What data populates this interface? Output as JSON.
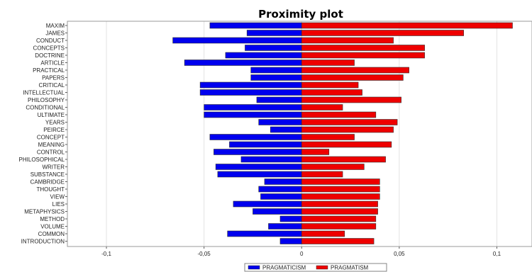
{
  "chart_data": {
    "type": "bar",
    "orientation": "horizontal",
    "title": "Proximity plot",
    "xlabel": "",
    "ylabel": "",
    "xlim": [
      -0.12,
      0.118
    ],
    "xticks": [
      {
        "value": -0.1,
        "label": "-0,1"
      },
      {
        "value": -0.05,
        "label": "-0,05"
      },
      {
        "value": 0,
        "label": "0"
      },
      {
        "value": 0.05,
        "label": "0,05"
      },
      {
        "value": 0.1,
        "label": "0,1"
      }
    ],
    "grid": true,
    "legend_position": "bottom",
    "categories": [
      "MAXIM",
      "JAMES",
      "CONDUCT",
      "CONCEPTS",
      "DOCTRINE",
      "ARTICLE",
      "PRACTICAL",
      "PAPERS",
      "CRITICAL",
      "INTELLECTUAL",
      "PHILOSOPHY",
      "CONDITIONAL",
      "ULTIMATE",
      "YEARS",
      "PEIRCE",
      "CONCEPT",
      "MEANING",
      "CONTROL",
      "PHILOSOPHICAL",
      "WRITER",
      "SUBSTANCE",
      "CAMBRIDGE",
      "THOUGHT",
      "VIEW",
      "LIES",
      "METAPHYSICS",
      "METHOD",
      "VOLUME",
      "COMMON",
      "INTRODUCTION"
    ],
    "series": [
      {
        "name": "PRAGMATICISM",
        "color": "#0000ee",
        "values": [
          -0.047,
          -0.028,
          -0.066,
          -0.029,
          -0.039,
          -0.06,
          -0.026,
          -0.026,
          -0.052,
          -0.052,
          -0.023,
          -0.05,
          -0.05,
          -0.022,
          -0.016,
          -0.047,
          -0.037,
          -0.045,
          -0.031,
          -0.044,
          -0.043,
          -0.019,
          -0.022,
          -0.021,
          -0.035,
          -0.025,
          -0.011,
          -0.017,
          -0.038,
          -0.011
        ]
      },
      {
        "name": "PRAGMATISM",
        "color": "#ee0000",
        "values": [
          0.108,
          0.083,
          0.047,
          0.063,
          0.063,
          0.027,
          0.055,
          0.052,
          0.029,
          0.031,
          0.051,
          0.021,
          0.038,
          0.049,
          0.047,
          0.027,
          0.046,
          0.014,
          0.043,
          0.032,
          0.021,
          0.04,
          0.04,
          0.04,
          0.039,
          0.039,
          0.038,
          0.038,
          0.022,
          0.037
        ]
      }
    ]
  }
}
